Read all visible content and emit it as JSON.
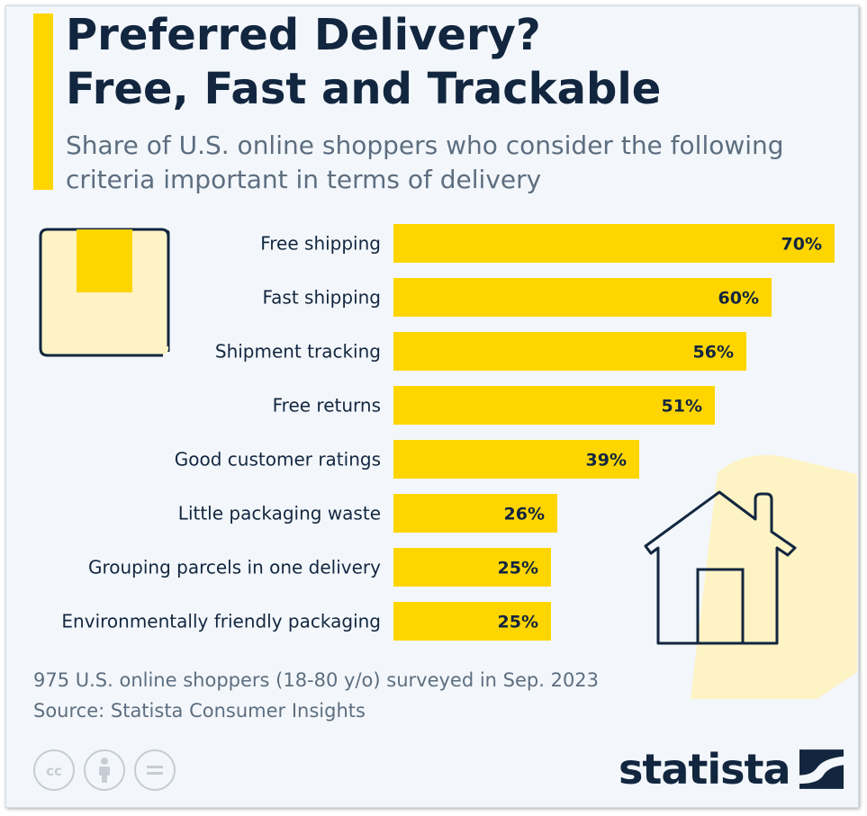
{
  "title_line1": "Preferred Delivery?",
  "title_line2": "Free, Fast and Trackable",
  "subtitle_line1": "Share of U.S. online shoppers who consider the following",
  "subtitle_line2": "criteria important in terms of delivery",
  "note": "975 U.S. online shoppers (18-80 y/o) surveyed in Sep. 2023",
  "source": "Source: Statista Consumer Insights",
  "logo_text": "statista",
  "colors": {
    "bar": "#ffd500",
    "text": "#12263f",
    "muted": "#5d6e80",
    "background": "#f3f7fb"
  },
  "icons": [
    "package-box-icon",
    "house-icon",
    "cc-icon",
    "attribution-icon",
    "no-derivatives-icon",
    "statista-logo-icon"
  ],
  "chart_data": {
    "type": "bar",
    "orientation": "horizontal",
    "categories": [
      "Free shipping",
      "Fast shipping",
      "Shipment tracking",
      "Free returns",
      "Good customer ratings",
      "Little packaging waste",
      "Grouping parcels in one delivery",
      "Environmentally friendly packaging"
    ],
    "values": [
      70,
      60,
      56,
      51,
      39,
      26,
      25,
      25
    ],
    "value_labels": [
      "70%",
      "60%",
      "56%",
      "51%",
      "39%",
      "26%",
      "25%",
      "25%"
    ],
    "unit": "%",
    "xlim": [
      0,
      70
    ],
    "grid": false,
    "legend": "none"
  }
}
